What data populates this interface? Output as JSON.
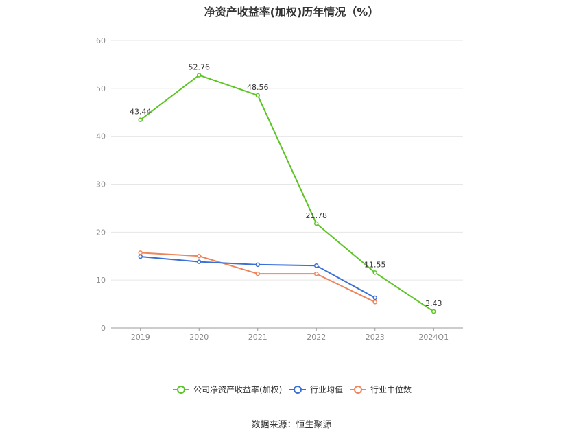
{
  "chart_data": {
    "type": "line",
    "title": "净资产收益率(加权)历年情况（%）",
    "categories": [
      "2019",
      "2020",
      "2021",
      "2022",
      "2023",
      "2024Q1"
    ],
    "ylim": [
      0,
      60
    ],
    "yticks": [
      0,
      10,
      20,
      30,
      40,
      50,
      60
    ],
    "grid": true,
    "legend_position": "bottom",
    "series": [
      {
        "name": "公司净资产收益率(加权)",
        "color": "#5cc424",
        "values": [
          43.44,
          52.76,
          48.56,
          21.78,
          11.55,
          3.43
        ],
        "labels": [
          "43.44",
          "52.76",
          "48.56",
          "21.78",
          "11.55",
          "3.43"
        ]
      },
      {
        "name": "行业均值",
        "color": "#3a6fd8",
        "values": [
          14.9,
          13.8,
          13.2,
          13.0,
          6.3,
          null
        ]
      },
      {
        "name": "行业中位数",
        "color": "#f0845a",
        "values": [
          15.7,
          15.0,
          11.3,
          11.3,
          5.4,
          null
        ]
      }
    ]
  },
  "source": "数据来源：恒生聚源"
}
